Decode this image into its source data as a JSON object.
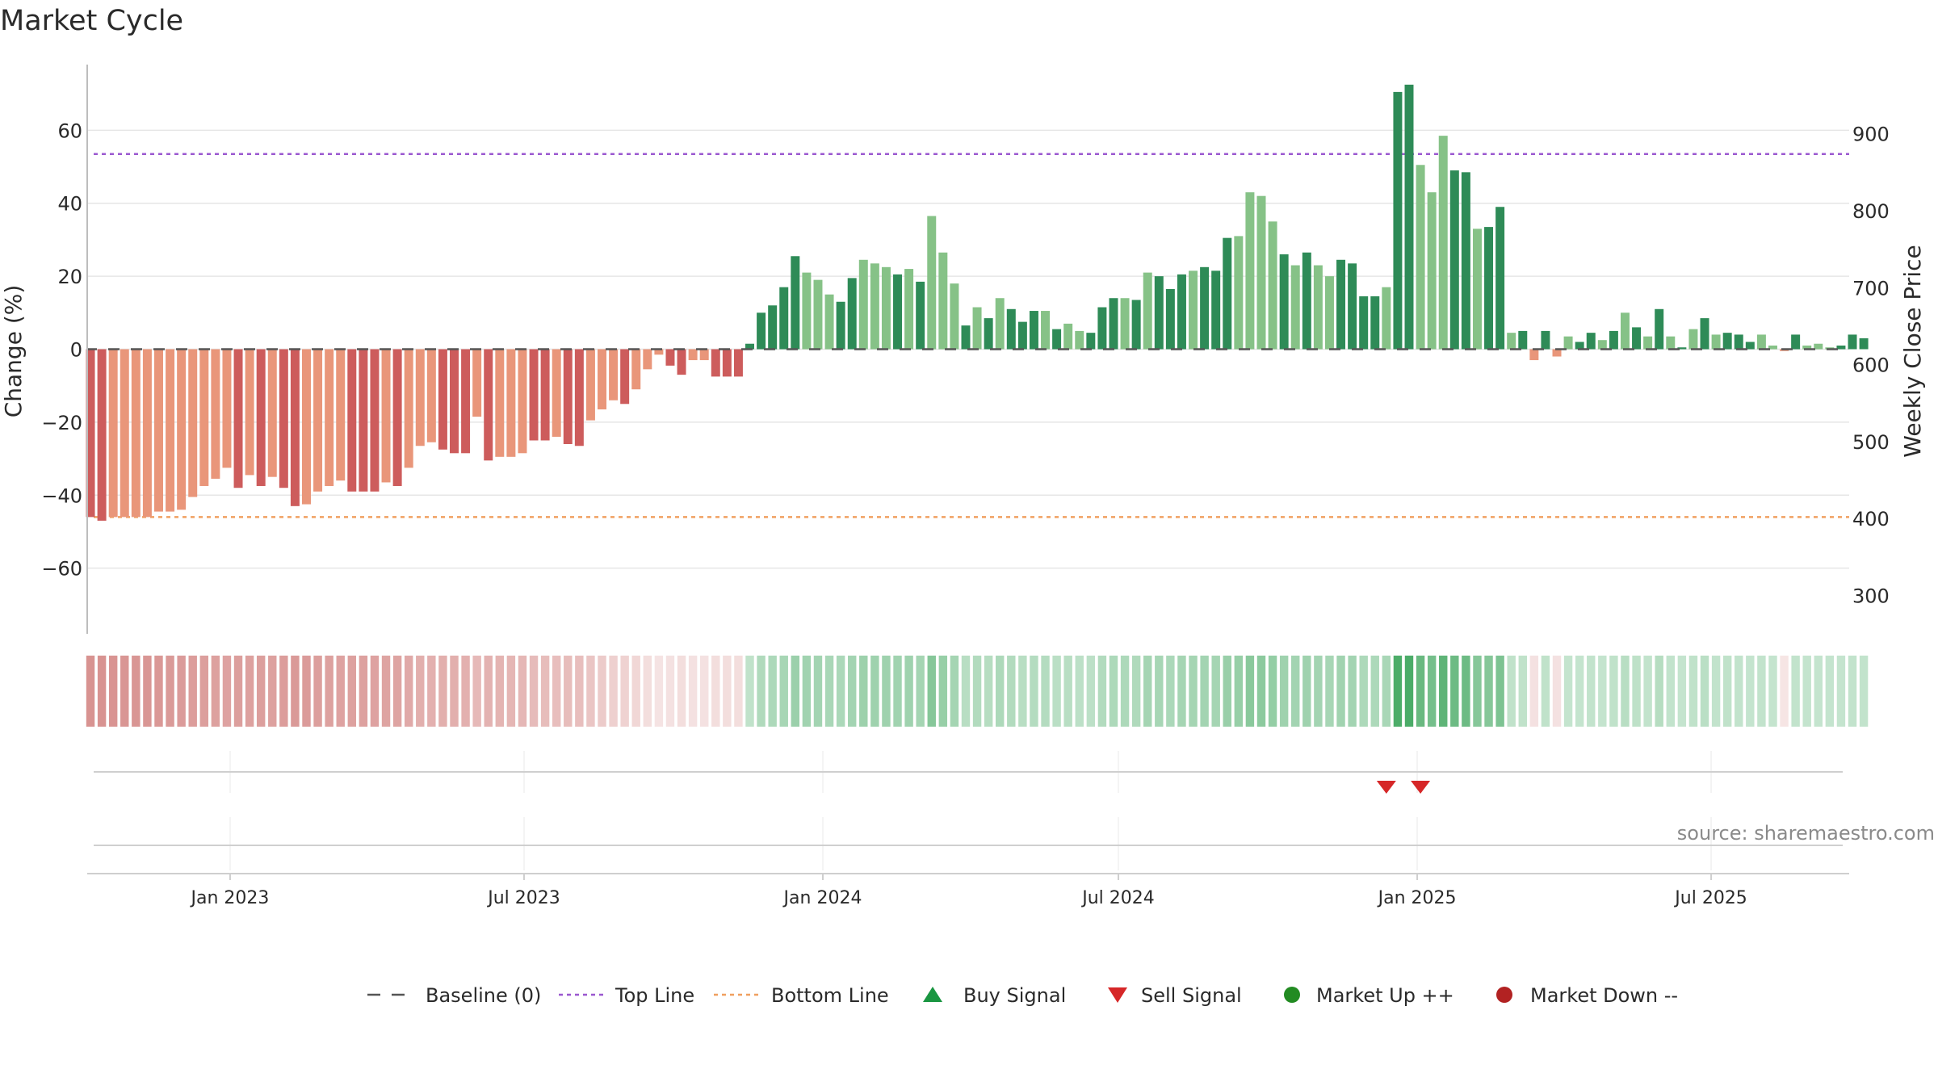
{
  "title": "Market Cycle",
  "source_label": "source: sharemaestro.com",
  "colors": {
    "pos_strong": "#2e8b57",
    "pos_light": "#86c287",
    "neg_strong": "#cd5c5c",
    "neg_light": "#e9967a",
    "top_line": "#9b59d0",
    "bottom_line": "#f0a060",
    "baseline": "#555555",
    "buy": "#1a9641",
    "sell": "#d62728",
    "market_up": "#228b22",
    "market_down": "#b22222",
    "grid": "#e6e6e6"
  },
  "chart_data": {
    "type": "bar",
    "xlabel": "",
    "ylabel": "Change (%)",
    "y2label": "Weekly Close Price",
    "ylim": [
      -78,
      78
    ],
    "y2lim": [
      250,
      990
    ],
    "yticks": [
      -60,
      -40,
      -20,
      0,
      20,
      40,
      60
    ],
    "yticklabels": [
      "−60",
      "−40",
      "−20",
      "0",
      "20",
      "40",
      "60"
    ],
    "y2ticks": [
      300,
      400,
      500,
      600,
      700,
      800,
      900
    ],
    "xlim": [
      "2022-10-05",
      "2025-09-24"
    ],
    "xticks": [
      "2023-01-01",
      "2023-07-01",
      "2024-01-01",
      "2024-07-01",
      "2025-01-01",
      "2025-07-01"
    ],
    "xticklabels": [
      "Jan 2023",
      "Jul 2023",
      "Jan 2024",
      "Jul 2024",
      "Jan 2025",
      "Jul 2025"
    ],
    "start_week": "2022-10-07",
    "week_step_days": 7,
    "top_line": 53.5,
    "bottom_line": -46,
    "baseline": 0,
    "values": [
      -46,
      -47,
      -46,
      -46,
      -46,
      -46,
      -44.5,
      -44.5,
      -44,
      -40.5,
      -37.5,
      -35.5,
      -32.5,
      -38,
      -34.5,
      -37.5,
      -35,
      -38,
      -43,
      -42.5,
      -39,
      -37.5,
      -36,
      -39,
      -39,
      -39,
      -36.5,
      -37.5,
      -32.5,
      -26.5,
      -25.5,
      -27.5,
      -28.5,
      -28.5,
      -18.5,
      -30.5,
      -29.5,
      -29.5,
      -28.5,
      -25,
      -25,
      -24,
      -26,
      -26.5,
      -19.5,
      -16.5,
      -14,
      -15,
      -11,
      -5.5,
      -1.5,
      -4.5,
      -7,
      -3,
      -3,
      -7.5,
      -7.5,
      -7.5,
      1.5,
      10,
      12,
      17,
      25.5,
      21,
      19,
      15,
      13,
      19.5,
      24.5,
      23.5,
      22.5,
      20.5,
      22,
      18.5,
      36.5,
      26.5,
      18,
      6.5,
      11.5,
      8.5,
      14,
      11,
      7.5,
      10.5,
      10.5,
      5.5,
      7,
      5,
      4.5,
      11.5,
      14,
      14,
      13.5,
      21,
      20,
      16.5,
      20.5,
      21.5,
      22.5,
      21.5,
      30.5,
      31,
      43,
      42,
      35,
      26,
      23,
      26.5,
      23,
      20,
      24.5,
      23.5,
      14.5,
      14.5,
      17,
      70.5,
      72.5,
      50.5,
      43,
      58.5,
      49,
      48.5,
      33,
      33.5,
      39,
      4.5,
      5,
      -3,
      5,
      -2,
      3.5,
      2,
      4.5,
      2.5,
      5,
      10,
      6,
      3.5,
      11,
      3.5,
      0.5,
      5.5,
      8.5,
      4,
      4.5,
      4,
      2,
      4,
      1,
      -0.5,
      4,
      1,
      1.5,
      0.5,
      1,
      4,
      3
    ],
    "strong_flags": [
      1,
      1,
      0,
      0,
      0,
      0,
      0,
      0,
      0,
      0,
      0,
      0,
      0,
      1,
      0,
      1,
      0,
      1,
      1,
      0,
      0,
      0,
      0,
      1,
      1,
      1,
      0,
      1,
      0,
      0,
      0,
      1,
      1,
      1,
      0,
      1,
      0,
      0,
      0,
      1,
      1,
      0,
      1,
      1,
      0,
      0,
      0,
      1,
      0,
      0,
      0,
      1,
      1,
      0,
      0,
      1,
      1,
      1,
      1,
      1,
      1,
      1,
      1,
      0,
      0,
      0,
      1,
      1,
      0,
      0,
      0,
      1,
      0,
      1,
      0,
      0,
      0,
      1,
      0,
      1,
      0,
      1,
      1,
      1,
      0,
      1,
      0,
      0,
      1,
      1,
      1,
      0,
      1,
      0,
      1,
      1,
      1,
      0,
      1,
      1,
      1,
      0,
      0,
      0,
      0,
      1,
      0,
      1,
      0,
      0,
      1,
      1,
      1,
      1,
      0,
      1,
      1,
      0,
      0,
      0,
      1,
      1,
      0,
      1,
      1,
      0,
      1,
      0,
      1,
      0,
      0,
      1,
      1,
      0,
      1,
      0,
      1,
      0,
      1,
      0,
      1,
      0,
      1,
      0,
      1,
      1,
      1,
      0,
      0,
      0,
      1,
      0,
      0,
      0,
      1,
      1,
      1,
      0
    ],
    "heat_scores": [
      -0.62,
      -0.62,
      -0.61,
      -0.6,
      -0.6,
      -0.6,
      -0.59,
      -0.58,
      -0.57,
      -0.56,
      -0.55,
      -0.54,
      -0.53,
      -0.55,
      -0.54,
      -0.55,
      -0.54,
      -0.56,
      -0.58,
      -0.57,
      -0.55,
      -0.54,
      -0.53,
      -0.54,
      -0.54,
      -0.53,
      -0.52,
      -0.52,
      -0.49,
      -0.46,
      -0.45,
      -0.46,
      -0.46,
      -0.45,
      -0.4,
      -0.44,
      -0.43,
      -0.42,
      -0.41,
      -0.39,
      -0.38,
      -0.37,
      -0.38,
      -0.37,
      -0.33,
      -0.3,
      -0.27,
      -0.26,
      -0.23,
      -0.19,
      -0.16,
      -0.17,
      -0.19,
      -0.17,
      -0.17,
      -0.19,
      -0.19,
      -0.19,
      0.3,
      0.38,
      0.39,
      0.42,
      0.48,
      0.45,
      0.44,
      0.41,
      0.4,
      0.44,
      0.47,
      0.46,
      0.46,
      0.45,
      0.46,
      0.43,
      0.58,
      0.5,
      0.43,
      0.34,
      0.37,
      0.35,
      0.39,
      0.37,
      0.34,
      0.36,
      0.36,
      0.33,
      0.34,
      0.32,
      0.32,
      0.37,
      0.39,
      0.39,
      0.38,
      0.43,
      0.42,
      0.4,
      0.43,
      0.43,
      0.44,
      0.43,
      0.49,
      0.5,
      0.56,
      0.55,
      0.51,
      0.46,
      0.44,
      0.46,
      0.44,
      0.42,
      0.45,
      0.44,
      0.39,
      0.39,
      0.41,
      0.85,
      0.86,
      0.72,
      0.66,
      0.77,
      0.7,
      0.7,
      0.58,
      0.58,
      0.62,
      0.3,
      0.3,
      -0.17,
      0.3,
      -0.17,
      0.28,
      0.28,
      0.29,
      0.28,
      0.3,
      0.34,
      0.31,
      0.29,
      0.35,
      0.29,
      0.28,
      0.3,
      0.33,
      0.29,
      0.3,
      0.29,
      0.28,
      0.29,
      0.28,
      -0.15,
      0.29,
      0.28,
      0.28,
      0.28,
      0.28,
      0.29,
      0.29
    ],
    "sell_signals": [
      "2024-12-13",
      "2025-01-03"
    ],
    "buy_signals": [],
    "market_up": [],
    "market_down": []
  },
  "legend": {
    "placement": "bottom-center",
    "items": [
      {
        "id": "baseline",
        "label": "Baseline (0)"
      },
      {
        "id": "top",
        "label": "Top Line"
      },
      {
        "id": "bottom",
        "label": "Bottom Line"
      },
      {
        "id": "buy",
        "label": "Buy Signal"
      },
      {
        "id": "sell",
        "label": "Sell Signal"
      },
      {
        "id": "up",
        "label": "Market Up ++"
      },
      {
        "id": "down",
        "label": "Market Down --"
      }
    ]
  }
}
